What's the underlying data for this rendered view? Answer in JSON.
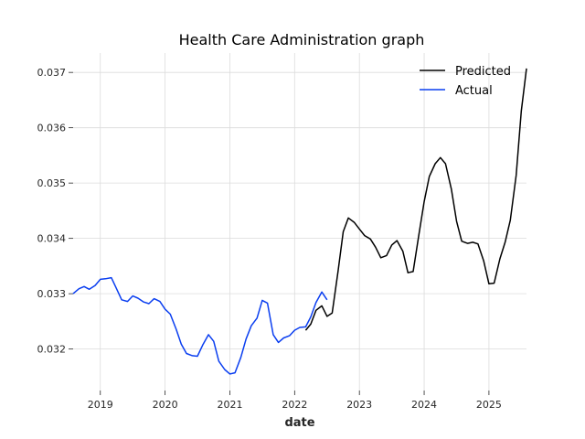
{
  "chart_data": {
    "type": "line",
    "title": "Health Care Administration graph",
    "xlabel": "date",
    "ylabel": "",
    "xlim": [
      2018.58,
      2025.58
    ],
    "ylim": [
      0.03125,
      0.03735
    ],
    "grid": true,
    "legend_position": "top-right",
    "x_ticks": [
      2019,
      2020,
      2021,
      2022,
      2023,
      2024,
      2025
    ],
    "x_tick_labels": [
      "2019",
      "2020",
      "2021",
      "2022",
      "2023",
      "2024",
      "2025"
    ],
    "y_ticks": [
      0.032,
      0.033,
      0.034,
      0.035,
      0.036,
      0.037
    ],
    "y_tick_labels": [
      "0.032",
      "0.033",
      "0.034",
      "0.035",
      "0.036",
      "0.037"
    ],
    "series": [
      {
        "name": "Predicted",
        "color": "#000000",
        "x": [
          2022.17,
          2022.25,
          2022.33,
          2022.42,
          2022.5,
          2022.58,
          2022.67,
          2022.75,
          2022.83,
          2022.92,
          2023.0,
          2023.08,
          2023.17,
          2023.25,
          2023.33,
          2023.42,
          2023.5,
          2023.58,
          2023.67,
          2023.75,
          2023.83,
          2023.92,
          2024.0,
          2024.08,
          2024.17,
          2024.25,
          2024.33,
          2024.42,
          2024.5,
          2024.58,
          2024.67,
          2024.75,
          2024.83,
          2024.92,
          2025.0,
          2025.08,
          2025.17,
          2025.25,
          2025.33,
          2025.42,
          2025.5,
          2025.58
        ],
        "y": [
          0.03234,
          0.03245,
          0.0327,
          0.03278,
          0.03259,
          0.03265,
          0.0334,
          0.03412,
          0.03437,
          0.03429,
          0.03417,
          0.03405,
          0.03399,
          0.03384,
          0.03365,
          0.03369,
          0.03388,
          0.03396,
          0.03377,
          0.03338,
          0.0334,
          0.03408,
          0.03466,
          0.03512,
          0.03535,
          0.03546,
          0.03535,
          0.03489,
          0.03431,
          0.03395,
          0.03391,
          0.03393,
          0.0339,
          0.03359,
          0.03318,
          0.03319,
          0.03363,
          0.03393,
          0.03433,
          0.03514,
          0.0363,
          0.03707
        ]
      },
      {
        "name": "Actual",
        "color": "#0a3ef0",
        "x": [
          2018.58,
          2018.67,
          2018.75,
          2018.83,
          2018.92,
          2019.0,
          2019.08,
          2019.17,
          2019.25,
          2019.33,
          2019.42,
          2019.5,
          2019.58,
          2019.67,
          2019.75,
          2019.83,
          2019.92,
          2020.0,
          2020.08,
          2020.17,
          2020.25,
          2020.33,
          2020.42,
          2020.5,
          2020.58,
          2020.67,
          2020.75,
          2020.83,
          2020.92,
          2021.0,
          2021.08,
          2021.17,
          2021.25,
          2021.33,
          2021.42,
          2021.5,
          2021.58,
          2021.67,
          2021.75,
          2021.83,
          2021.92,
          2022.0,
          2022.08,
          2022.17,
          2022.25,
          2022.33,
          2022.42,
          2022.5
        ],
        "y": [
          0.033,
          0.03309,
          0.03313,
          0.03308,
          0.03315,
          0.03326,
          0.03327,
          0.03329,
          0.03309,
          0.03289,
          0.03286,
          0.03296,
          0.03292,
          0.03285,
          0.03282,
          0.03291,
          0.03286,
          0.03272,
          0.03263,
          0.03236,
          0.03209,
          0.03192,
          0.03188,
          0.03187,
          0.03207,
          0.03226,
          0.03214,
          0.03178,
          0.03163,
          0.03155,
          0.03157,
          0.03185,
          0.03218,
          0.03242,
          0.03256,
          0.03288,
          0.03283,
          0.03226,
          0.03212,
          0.0322,
          0.03224,
          0.03234,
          0.03239,
          0.0324,
          0.03258,
          0.03284,
          0.03303,
          0.03289
        ]
      }
    ]
  }
}
